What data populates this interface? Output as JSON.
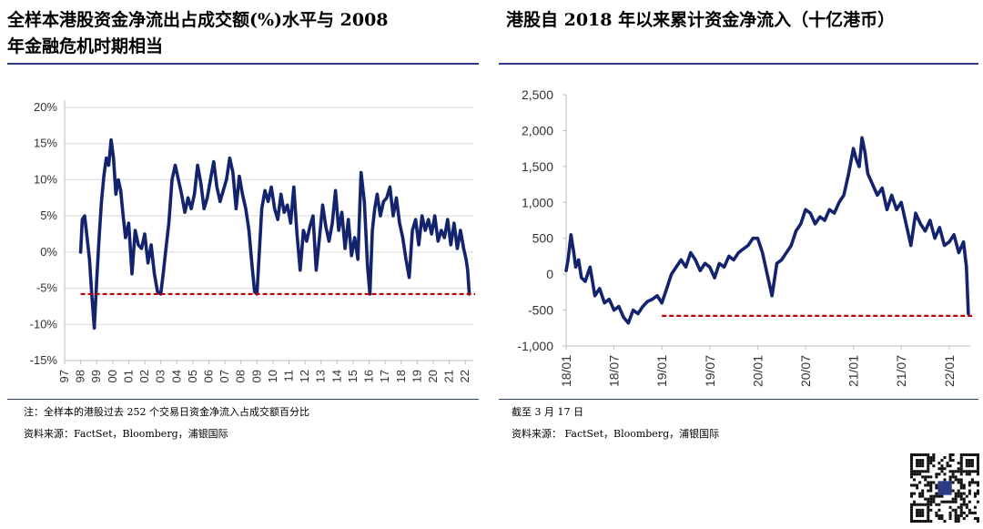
{
  "left": {
    "title_line1": "全样本港股资金净流出占成交额(%)水平与 2008",
    "title_line2": "年金融危机时期相当",
    "note": "注：全样本的港股过去 252 个交易日资金净流入占成交额百分比",
    "source": "资料来源：FactSet，Bloomberg，浦银国际"
  },
  "right": {
    "title": "港股自 2018 年以来累计资金净流入（十亿港币）",
    "note": "截至 3 月 17 日",
    "source": "资料来源： FactSet，Bloomberg，浦银国际"
  },
  "qr_label": "QR code",
  "colors": {
    "series": "#14236e",
    "reference": "#c00000",
    "grid": "#d9d9d9",
    "rule": "#2e3a87"
  },
  "chart_data": [
    {
      "type": "line",
      "title": "全样本港股资金净流出占成交额(%)水平与 2008 年金融危机时期相当",
      "x_tick_labels": [
        "97",
        "98",
        "99",
        "00",
        "01",
        "02",
        "03",
        "04",
        "05",
        "06",
        "07",
        "08",
        "09",
        "10",
        "11",
        "12",
        "13",
        "14",
        "15",
        "16",
        "17",
        "18",
        "19",
        "20",
        "21",
        "22"
      ],
      "y_tick_labels": [
        "20%",
        "15%",
        "10%",
        "5%",
        "0%",
        "-5%",
        "-10%",
        "-15%"
      ],
      "y_ticks": [
        20,
        15,
        10,
        5,
        0,
        -5,
        -10,
        -15
      ],
      "ylim": [
        -15,
        20
      ],
      "xlim": [
        1997.0,
        2022.5
      ],
      "reference_line": {
        "y": -5.8,
        "style": "dashed"
      },
      "series": [
        {
          "name": "资金净流入占成交额",
          "x": [
            1998.0,
            1998.1,
            1998.25,
            1998.4,
            1998.55,
            1998.7,
            1998.85,
            1999.0,
            1999.15,
            1999.3,
            1999.45,
            1999.6,
            1999.75,
            1999.9,
            2000.05,
            2000.2,
            2000.35,
            2000.5,
            2000.65,
            2000.8,
            2001.0,
            2001.2,
            2001.4,
            2001.6,
            2001.8,
            2002.0,
            2002.2,
            2002.4,
            2002.6,
            2002.8,
            2003.0,
            2003.15,
            2003.3,
            2003.5,
            2003.7,
            2003.9,
            2004.1,
            2004.3,
            2004.5,
            2004.7,
            2004.9,
            2005.1,
            2005.3,
            2005.5,
            2005.7,
            2005.9,
            2006.1,
            2006.3,
            2006.5,
            2006.7,
            2006.9,
            2007.1,
            2007.3,
            2007.5,
            2007.7,
            2007.9,
            2008.1,
            2008.3,
            2008.5,
            2008.7,
            2008.85,
            2009.0,
            2009.15,
            2009.3,
            2009.5,
            2009.7,
            2009.9,
            2010.1,
            2010.3,
            2010.5,
            2010.7,
            2010.9,
            2011.1,
            2011.3,
            2011.5,
            2011.7,
            2011.9,
            2012.1,
            2012.3,
            2012.5,
            2012.7,
            2012.9,
            2013.1,
            2013.3,
            2013.5,
            2013.7,
            2013.9,
            2014.1,
            2014.3,
            2014.5,
            2014.7,
            2014.9,
            2015.1,
            2015.3,
            2015.5,
            2015.7,
            2015.9,
            2016.05,
            2016.2,
            2016.35,
            2016.5,
            2016.7,
            2016.9,
            2017.1,
            2017.3,
            2017.5,
            2017.7,
            2017.9,
            2018.1,
            2018.3,
            2018.5,
            2018.7,
            2018.9,
            2019.1,
            2019.3,
            2019.5,
            2019.7,
            2019.9,
            2020.1,
            2020.3,
            2020.5,
            2020.7,
            2020.9,
            2021.1,
            2021.3,
            2021.5,
            2021.7,
            2021.9,
            2022.05,
            2022.15,
            2022.25
          ],
          "values": [
            0.0,
            4.5,
            5.0,
            2.0,
            -1.0,
            -6.0,
            -10.5,
            -4.0,
            2.0,
            7.0,
            10.5,
            13.0,
            12.0,
            15.5,
            13.0,
            8.0,
            10.0,
            8.5,
            5.0,
            2.0,
            4.0,
            -3.0,
            3.0,
            1.0,
            0.5,
            2.5,
            -1.5,
            1.0,
            -3.0,
            -5.5,
            -5.8,
            -3.0,
            0.0,
            4.0,
            10.0,
            12.0,
            10.0,
            8.0,
            5.5,
            7.5,
            6.0,
            8.0,
            12.0,
            9.5,
            6.0,
            7.5,
            10.0,
            12.5,
            9.0,
            7.0,
            8.5,
            10.0,
            13.0,
            11.0,
            6.0,
            10.5,
            8.0,
            6.0,
            3.0,
            -2.0,
            -5.5,
            -5.8,
            0.0,
            6.0,
            8.5,
            7.0,
            9.0,
            6.0,
            4.5,
            8.0,
            5.5,
            6.5,
            4.0,
            9.0,
            2.5,
            -2.5,
            3.0,
            1.5,
            3.5,
            5.0,
            -2.5,
            2.0,
            6.5,
            3.5,
            1.5,
            4.0,
            8.5,
            3.0,
            5.5,
            0.5,
            4.5,
            -0.5,
            2.0,
            -1.0,
            11.0,
            7.0,
            -2.0,
            -5.8,
            3.0,
            6.0,
            8.0,
            5.0,
            7.0,
            7.5,
            9.0,
            5.0,
            7.5,
            4.0,
            2.0,
            -1.0,
            -3.5,
            3.0,
            4.5,
            1.0,
            5.0,
            3.0,
            4.5,
            2.5,
            5.0,
            1.5,
            3.0,
            2.0,
            4.5,
            1.0,
            4.0,
            0.5,
            3.0,
            0.5,
            -1.0,
            -2.5,
            -5.8
          ]
        }
      ]
    },
    {
      "type": "line",
      "title": "港股自 2018 年以来累计资金净流入（十亿港币）",
      "x_tick_labels": [
        "18/01",
        "18/07",
        "19/01",
        "19/07",
        "20/01",
        "20/07",
        "21/01",
        "21/07",
        "22/01"
      ],
      "x_ticks": [
        2018.0,
        2018.5,
        2019.0,
        2019.5,
        2020.0,
        2020.5,
        2021.0,
        2021.5,
        2022.0
      ],
      "y_tick_labels": [
        "2,500",
        "2,000",
        "1,500",
        "1,000",
        "500",
        "0",
        "-500",
        "-1,000"
      ],
      "y_ticks": [
        2500,
        2000,
        1500,
        1000,
        500,
        0,
        -500,
        -1000
      ],
      "ylim": [
        -1000,
        2500
      ],
      "xlim": [
        2018.0,
        2022.22
      ],
      "reference_line": {
        "y": -580,
        "style": "dashed"
      },
      "series": [
        {
          "name": "累计资金净流入",
          "x": [
            2018.0,
            2018.02,
            2018.05,
            2018.08,
            2018.1,
            2018.13,
            2018.16,
            2018.2,
            2018.25,
            2018.3,
            2018.35,
            2018.4,
            2018.45,
            2018.5,
            2018.55,
            2018.6,
            2018.65,
            2018.7,
            2018.75,
            2018.8,
            2018.85,
            2018.9,
            2018.95,
            2019.0,
            2019.05,
            2019.1,
            2019.15,
            2019.2,
            2019.25,
            2019.3,
            2019.35,
            2019.4,
            2019.45,
            2019.5,
            2019.55,
            2019.6,
            2019.65,
            2019.7,
            2019.75,
            2019.8,
            2019.85,
            2019.9,
            2019.95,
            2020.0,
            2020.05,
            2020.1,
            2020.15,
            2020.2,
            2020.25,
            2020.3,
            2020.35,
            2020.4,
            2020.45,
            2020.5,
            2020.55,
            2020.6,
            2020.65,
            2020.7,
            2020.75,
            2020.8,
            2020.85,
            2020.9,
            2020.95,
            2021.0,
            2021.03,
            2021.06,
            2021.09,
            2021.12,
            2021.15,
            2021.2,
            2021.25,
            2021.3,
            2021.35,
            2021.4,
            2021.45,
            2021.5,
            2021.55,
            2021.6,
            2021.65,
            2021.7,
            2021.75,
            2021.8,
            2021.85,
            2021.9,
            2021.95,
            2022.0,
            2022.05,
            2022.1,
            2022.15,
            2022.18,
            2022.2
          ],
          "values": [
            50,
            200,
            550,
            300,
            100,
            200,
            -50,
            -100,
            100,
            -300,
            -200,
            -400,
            -350,
            -500,
            -450,
            -600,
            -680,
            -500,
            -550,
            -450,
            -380,
            -350,
            -300,
            -400,
            -200,
            0,
            100,
            200,
            100,
            300,
            200,
            50,
            150,
            100,
            -50,
            150,
            100,
            250,
            200,
            300,
            350,
            400,
            500,
            500,
            300,
            0,
            -300,
            150,
            200,
            300,
            400,
            600,
            700,
            900,
            850,
            700,
            800,
            750,
            900,
            850,
            1000,
            1100,
            1400,
            1750,
            1600,
            1500,
            1900,
            1700,
            1400,
            1250,
            1100,
            1200,
            900,
            1100,
            900,
            1000,
            700,
            400,
            850,
            700,
            600,
            750,
            500,
            650,
            400,
            450,
            550,
            300,
            450,
            100,
            -550
          ]
        }
      ]
    }
  ]
}
